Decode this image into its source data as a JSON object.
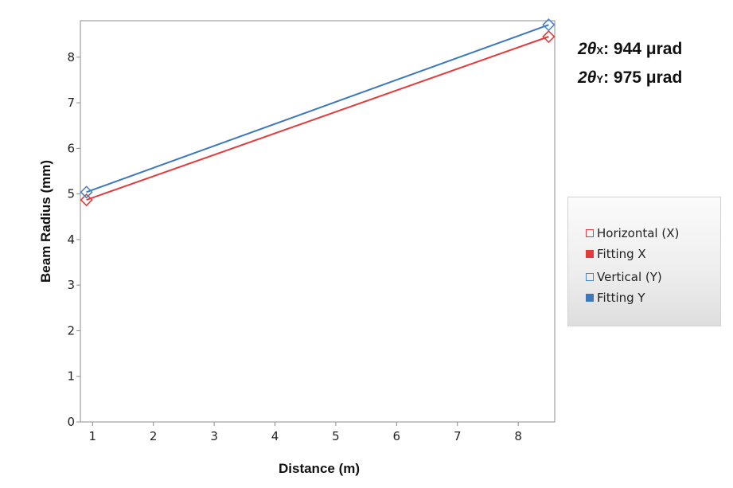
{
  "chart_data": {
    "type": "line",
    "xlabel": "Distance (m)",
    "ylabel": "Beam Radius (mm)",
    "xlim": [
      0.8,
      8.6
    ],
    "ylim": [
      0,
      8.8
    ],
    "x_ticks": [
      1,
      2,
      3,
      4,
      5,
      6,
      7,
      8
    ],
    "y_ticks": [
      0,
      1,
      2,
      3,
      4,
      5,
      6,
      7,
      8
    ],
    "grid": false,
    "legend_position": "right",
    "series": [
      {
        "name": "Horizontal (X)",
        "kind": "marker",
        "marker": "diamond-open",
        "color": "#e23b3b",
        "x": [
          0.9,
          8.5
        ],
        "y": [
          4.87,
          8.45
        ]
      },
      {
        "name": "Fitting X",
        "kind": "line",
        "color": "#e23b3b",
        "x": [
          0.9,
          8.5
        ],
        "y": [
          4.87,
          8.45
        ]
      },
      {
        "name": "Vertical (Y)",
        "kind": "marker",
        "marker": "diamond-open",
        "color": "#4a86c8",
        "x": [
          0.9,
          8.5
        ],
        "y": [
          5.04,
          8.71
        ]
      },
      {
        "name": "Fitting Y",
        "kind": "line",
        "color": "#3c78bb",
        "x": [
          0.9,
          8.5
        ],
        "y": [
          5.04,
          8.71
        ]
      }
    ],
    "annotations": [
      {
        "prefix": "2θ",
        "subscript": "X",
        "text": ": 944 μrad"
      },
      {
        "prefix": "2θ",
        "subscript": "Y",
        "text": ": 975 μrad"
      }
    ]
  },
  "legend": {
    "items": [
      {
        "label": "Horizontal (X)",
        "style": "open",
        "color": "#e23b3b"
      },
      {
        "label": "Fitting X",
        "style": "filled",
        "color": "#e23b3b"
      },
      {
        "label": "Vertical (Y)",
        "style": "open",
        "color": "#4a86c8"
      },
      {
        "label": "Fitting Y",
        "style": "filled",
        "color": "#3c78bb"
      }
    ]
  }
}
